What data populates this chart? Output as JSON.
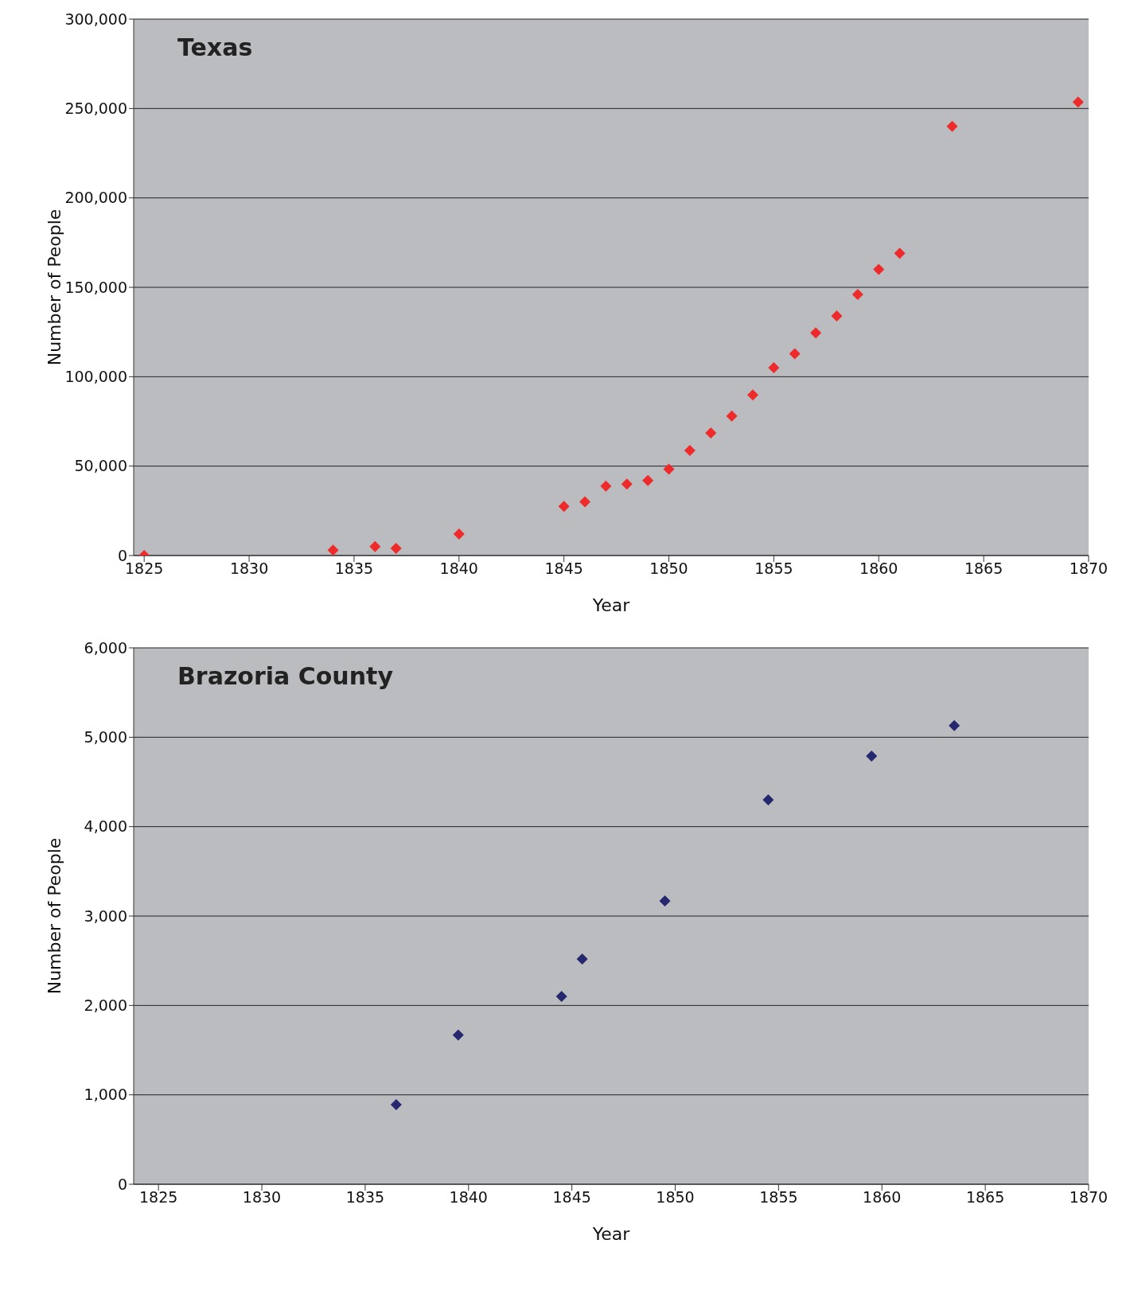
{
  "chart_data": [
    {
      "type": "scatter",
      "title": "Texas",
      "xlabel": "Year",
      "ylabel": "Number of People",
      "marker": "diamond",
      "grid": "y",
      "xlim": [
        1824.5,
        1870
      ],
      "xticks": [
        1825,
        1830,
        1835,
        1840,
        1845,
        1850,
        1855,
        1860,
        1865,
        1870
      ],
      "ylim": [
        0,
        300000
      ],
      "yticks": [
        0,
        {
          "value": 50000,
          "label": "50,000"
        },
        {
          "value": 100000,
          "label": "100,000"
        },
        {
          "value": 150000,
          "label": "150,000"
        },
        {
          "value": 200000,
          "label": "200,000"
        },
        {
          "value": 250000,
          "label": "250,000"
        },
        {
          "value": 300000,
          "label": "300,000"
        }
      ],
      "series": [
        {
          "color": "#ee2a2a",
          "x": [
            1825,
            1834,
            1836,
            1837,
            1840,
            1845,
            1846,
            1847,
            1848,
            1849,
            1850,
            1851,
            1852,
            1853,
            1854,
            1855,
            1856,
            1857,
            1858,
            1859,
            1860,
            1861,
            1863.5,
            1869.5
          ],
          "values": [
            0,
            3000,
            5000,
            4000,
            12000,
            27500,
            30000,
            38800,
            40000,
            42000,
            48300,
            58700,
            68600,
            78000,
            89800,
            105000,
            112800,
            124500,
            134000,
            146000,
            160000,
            169000,
            240000,
            253600
          ]
        }
      ]
    },
    {
      "type": "scatter",
      "title": "Brazoria County",
      "xlabel": "Year",
      "ylabel": "Number of People",
      "marker": "diamond",
      "grid": "y",
      "xlim": [
        1823.8,
        1870
      ],
      "xticks": [
        1825,
        1830,
        1835,
        1840,
        1845,
        1850,
        1855,
        1860,
        1865,
        1870
      ],
      "ylim": [
        0,
        6000
      ],
      "yticks": [
        0,
        {
          "value": 1000,
          "label": "1,000"
        },
        {
          "value": 2000,
          "label": "2,000"
        },
        {
          "value": 3000,
          "label": "3,000"
        },
        {
          "value": 4000,
          "label": "4,000"
        },
        {
          "value": 5000,
          "label": "5,000"
        },
        {
          "value": 6000,
          "label": "6,000"
        }
      ],
      "series": [
        {
          "color": "#25286e",
          "x": [
            1836.5,
            1839.5,
            1844.5,
            1845.5,
            1849.5,
            1854.5,
            1859.5,
            1863.5
          ],
          "values": [
            890,
            1670,
            2100,
            2520,
            3170,
            4300,
            4790,
            5130
          ]
        }
      ]
    }
  ]
}
